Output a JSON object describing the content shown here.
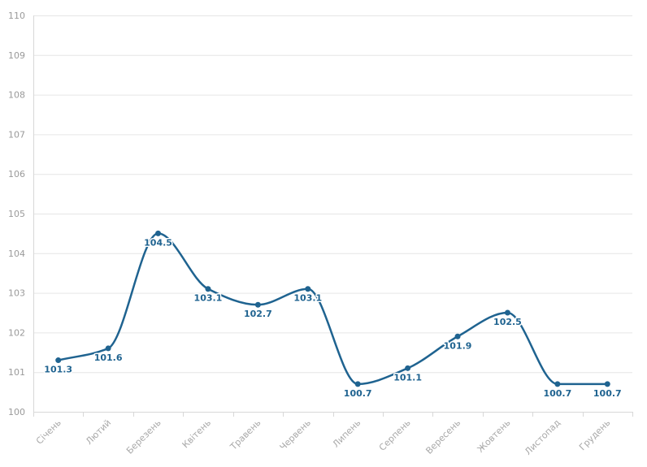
{
  "chart_data": {
    "type": "line",
    "categories": [
      "Січень",
      "Лютий",
      "Березень",
      "Квітень",
      "Травень",
      "Червень",
      "Липень",
      "Серпень",
      "Вересень",
      "Жовтень",
      "Листопад",
      "Грудень"
    ],
    "series": [
      {
        "values": [
          101.3,
          101.6,
          104.5,
          103.1,
          102.7,
          103.1,
          100.7,
          101.1,
          101.9,
          102.5,
          100.7,
          100.7
        ],
        "color": "#1f6390"
      }
    ],
    "data_labels": [
      "101.3",
      "101.6",
      "104.5",
      "103.1",
      "102.7",
      "103.1",
      "100.7",
      "101.1",
      "101.9",
      "102.5",
      "100.7",
      "100.7"
    ],
    "ylim": [
      100,
      110
    ],
    "y_ticks": [
      "100",
      "101",
      "102",
      "103",
      "104",
      "105",
      "106",
      "107",
      "108",
      "109",
      "110"
    ],
    "line_style": "smooth",
    "grid": true,
    "legend": "none"
  }
}
